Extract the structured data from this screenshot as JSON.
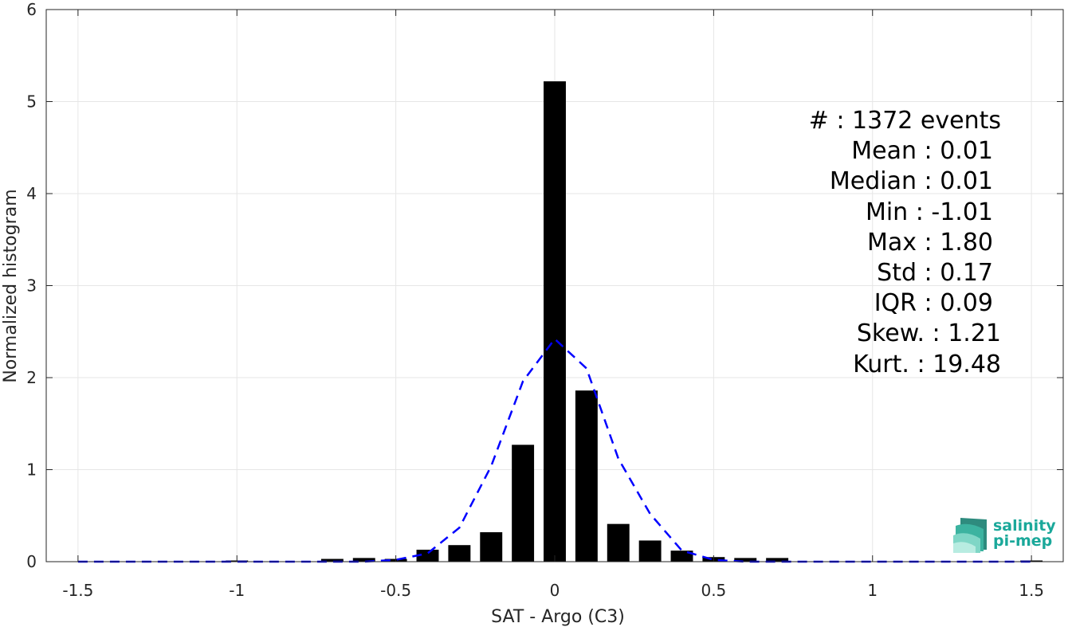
{
  "chart_data": {
    "type": "bar",
    "xlabel": "SAT - Argo (C3)",
    "ylabel": "Normalized histogram",
    "xlim": [
      -1.6,
      1.6
    ],
    "ylim": [
      0,
      6
    ],
    "xticks": [
      -1.5,
      -1,
      -0.5,
      0,
      0.5,
      1,
      1.5
    ],
    "xtick_labels": [
      "-1.5",
      "-1",
      "-0.5",
      "0",
      "0.5",
      "1",
      "1.5"
    ],
    "yticks": [
      0,
      1,
      2,
      3,
      4,
      5,
      6
    ],
    "ytick_labels": [
      "0",
      "1",
      "2",
      "3",
      "4",
      "5",
      "6"
    ],
    "grid": true,
    "bar_color": "#000000",
    "bar_width": 0.07,
    "bars": {
      "x": [
        -1.5,
        -1.4,
        -1.3,
        -1.2,
        -1.1,
        -1.0,
        -0.9,
        -0.8,
        -0.7,
        -0.6,
        -0.5,
        -0.4,
        -0.3,
        -0.2,
        -0.1,
        0.0,
        0.1,
        0.2,
        0.3,
        0.4,
        0.5,
        0.6,
        0.7,
        0.8,
        0.9,
        1.0,
        1.1,
        1.2,
        1.3,
        1.4,
        1.5
      ],
      "values": [
        0,
        0,
        0,
        0,
        0,
        0.01,
        0,
        0,
        0.03,
        0.04,
        0.03,
        0.13,
        0.18,
        0.32,
        1.27,
        5.22,
        1.86,
        0.41,
        0.23,
        0.12,
        0.05,
        0.04,
        0.04,
        0,
        0,
        0,
        0,
        0,
        0,
        0,
        0.01
      ]
    },
    "fit_curve": {
      "color": "#0000ff",
      "style": "dashed",
      "x": [
        -1.5,
        -1.4,
        -1.3,
        -1.2,
        -1.1,
        -1.0,
        -0.9,
        -0.8,
        -0.7,
        -0.6,
        -0.5,
        -0.4,
        -0.3,
        -0.2,
        -0.1,
        0.0,
        0.1,
        0.2,
        0.3,
        0.4,
        0.5,
        0.6,
        0.7,
        0.8,
        0.9,
        1.0,
        1.1,
        1.2,
        1.3,
        1.4,
        1.5
      ],
      "y": [
        0,
        0,
        0,
        0,
        0,
        0,
        0,
        0,
        0,
        0,
        0.02,
        0.09,
        0.37,
        1.04,
        1.96,
        2.42,
        2.1,
        1.12,
        0.52,
        0.12,
        0.02,
        0,
        0,
        0,
        0,
        0,
        0,
        0,
        0,
        0,
        0
      ]
    }
  },
  "stats": [
    "#  : 1372 events",
    "Mean : 0.01",
    "Median : 0.01",
    "Min : -1.01",
    "Max : 1.80",
    "Std : 0.17",
    "IQR : 0.09",
    "Skew. : 1.21",
    "Kurt. : 19.48"
  ],
  "logo": {
    "line1": "salinity",
    "line2": "pi-mep",
    "color": "#1aa89a"
  }
}
